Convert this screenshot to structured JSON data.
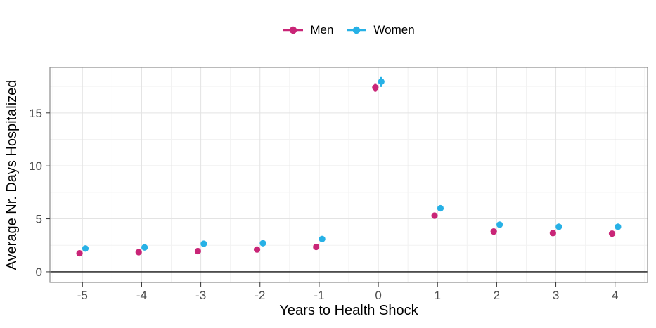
{
  "axes": {
    "x_title": "Years to Health Shock",
    "y_title": "Average Nr. Days Hospitalized"
  },
  "legend": {
    "position": "top",
    "items": [
      {
        "label": "Men",
        "icon": "pointrange-key-icon"
      },
      {
        "label": "Women",
        "icon": "pointrange-key-icon"
      }
    ]
  },
  "chart_data": {
    "type": "scatter",
    "title": "",
    "xlabel": "Years to Health Shock",
    "ylabel": "Average Nr. Days Hospitalized",
    "x": [
      -5,
      -4,
      -3,
      -2,
      -1,
      0,
      1,
      2,
      3,
      4
    ],
    "series": [
      {
        "name": "Men",
        "color": "#C92577",
        "values": [
          1.75,
          1.85,
          1.95,
          2.1,
          2.35,
          17.4,
          5.3,
          3.8,
          3.65,
          3.6
        ],
        "errors": [
          0,
          0,
          0,
          0,
          0,
          0.4,
          0,
          0,
          0,
          0
        ]
      },
      {
        "name": "Women",
        "color": "#27B1E6",
        "values": [
          2.2,
          2.3,
          2.65,
          2.7,
          3.1,
          17.95,
          6.0,
          4.45,
          4.25,
          4.25
        ],
        "errors": [
          0,
          0,
          0,
          0,
          0,
          0.5,
          0.2,
          0,
          0,
          0
        ]
      }
    ],
    "dodge": 0.05,
    "xlim": [
      -5.55,
      4.55
    ],
    "ylim": [
      -1.0,
      19.3
    ],
    "x_ticks": [
      -5,
      -4,
      -3,
      -2,
      -1,
      0,
      1,
      2,
      3,
      4
    ],
    "x_minor": [
      -5.5,
      -4.5,
      -3.5,
      -2.5,
      -1.5,
      -0.5,
      0.5,
      1.5,
      2.5,
      3.5,
      4.5
    ],
    "y_ticks": [
      0,
      5,
      10,
      15
    ],
    "y_minor": [
      2.5,
      7.5,
      12.5,
      17.5
    ],
    "grid": "major+minor",
    "legend_position": "top-center",
    "zero_line": true
  },
  "styles": {
    "background": "#ffffff",
    "grid_major": "#E3E3E3",
    "grid_minor": "#F2F2F2",
    "panel_border": "#8C8C8C",
    "tick_color": "#333333",
    "tick_label_color": "#4D4D4D",
    "axis_title_color": "#000000",
    "zero_line_color": "#141414"
  }
}
